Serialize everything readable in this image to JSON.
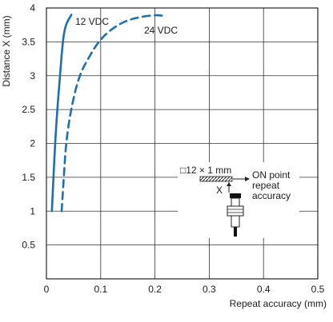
{
  "chart_data": {
    "type": "line",
    "title": "",
    "xlabel": "Repeat accuracy (mm)",
    "ylabel": "Distance X (mm)",
    "xlim": [
      0,
      0.5
    ],
    "ylim": [
      0,
      4
    ],
    "x_ticks": [
      "0",
      "0.1",
      "0.2",
      "0.3",
      "0.4",
      "0.5"
    ],
    "x_tick_values": [
      0,
      0.1,
      0.2,
      0.3,
      0.4,
      0.5
    ],
    "y_ticks": [
      "0.5",
      "1",
      "1.5",
      "2",
      "2.5",
      "3",
      "3.5",
      "4"
    ],
    "y_tick_values": [
      0.5,
      1,
      1.5,
      2,
      2.5,
      3,
      3.5,
      4
    ],
    "grid": true,
    "series": [
      {
        "name": "12 VDC",
        "style": "solid",
        "color": "#1f6fae",
        "points": [
          [
            0.01,
            1.0
          ],
          [
            0.013,
            1.5
          ],
          [
            0.016,
            2.0
          ],
          [
            0.02,
            2.5
          ],
          [
            0.025,
            3.0
          ],
          [
            0.03,
            3.5
          ],
          [
            0.035,
            3.75
          ],
          [
            0.046,
            3.9
          ]
        ]
      },
      {
        "name": "24 VDC",
        "style": "dashed",
        "color": "#1f6fae",
        "points": [
          [
            0.028,
            1.0
          ],
          [
            0.032,
            1.5
          ],
          [
            0.036,
            2.0
          ],
          [
            0.045,
            2.5
          ],
          [
            0.06,
            3.0
          ],
          [
            0.08,
            3.3
          ],
          [
            0.1,
            3.55
          ],
          [
            0.13,
            3.75
          ],
          [
            0.16,
            3.85
          ],
          [
            0.2,
            3.9
          ],
          [
            0.22,
            3.88
          ]
        ]
      }
    ],
    "inset": {
      "target_label": "□12 × 1 mm",
      "on_point_label": "ON point",
      "repeat_label": "repeat",
      "accuracy_label": "accuracy",
      "distance_label": "X"
    }
  }
}
